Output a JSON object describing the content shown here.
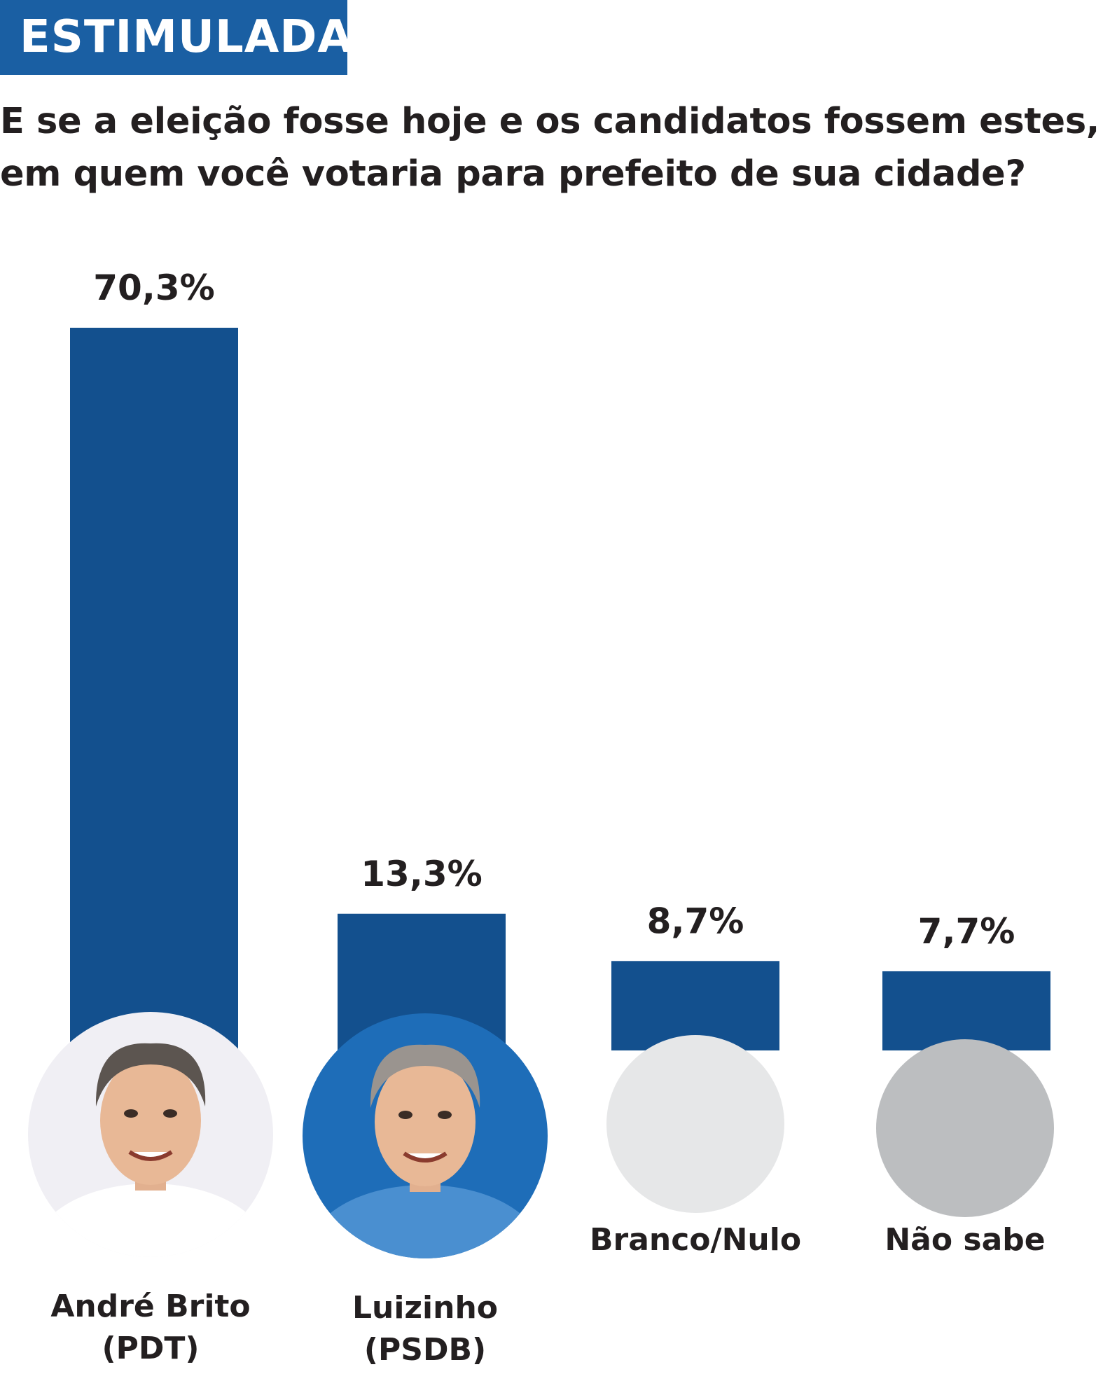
{
  "tag": "ESTIMULADA",
  "question": "E se a eleição fosse hoje e os candidatos fossem estes, em quem você votaria para prefeito de sua cidade?",
  "colors": {
    "bar": "#13508e",
    "tag": "#1a5fa3",
    "text": "#231f20"
  },
  "chart_data": {
    "type": "bar",
    "title": "",
    "xlabel": "",
    "ylabel": "",
    "ylim": [
      0,
      70.3
    ],
    "categories": [
      "André Brito\n(PDT)",
      "Luizinho\n(PSDB)",
      "Branco/Nulo",
      "Não sabe"
    ],
    "values": [
      70.3,
      13.3,
      8.7,
      7.7
    ],
    "value_labels": [
      "70,3%",
      "13,3%",
      "8,7%",
      "7,7%"
    ],
    "markers": [
      {
        "kind": "photo",
        "icon": "candidate-photo-andre-brito",
        "bg": "#f0eff4"
      },
      {
        "kind": "photo",
        "icon": "candidate-photo-luizinho",
        "bg": "#1e6db8"
      },
      {
        "kind": "circle",
        "icon": "blank-null-circle-icon",
        "bg": "#e6e7e8"
      },
      {
        "kind": "circle",
        "icon": "dont-know-circle-icon",
        "bg": "#bcbec0"
      }
    ],
    "grid": false,
    "legend": "none"
  }
}
